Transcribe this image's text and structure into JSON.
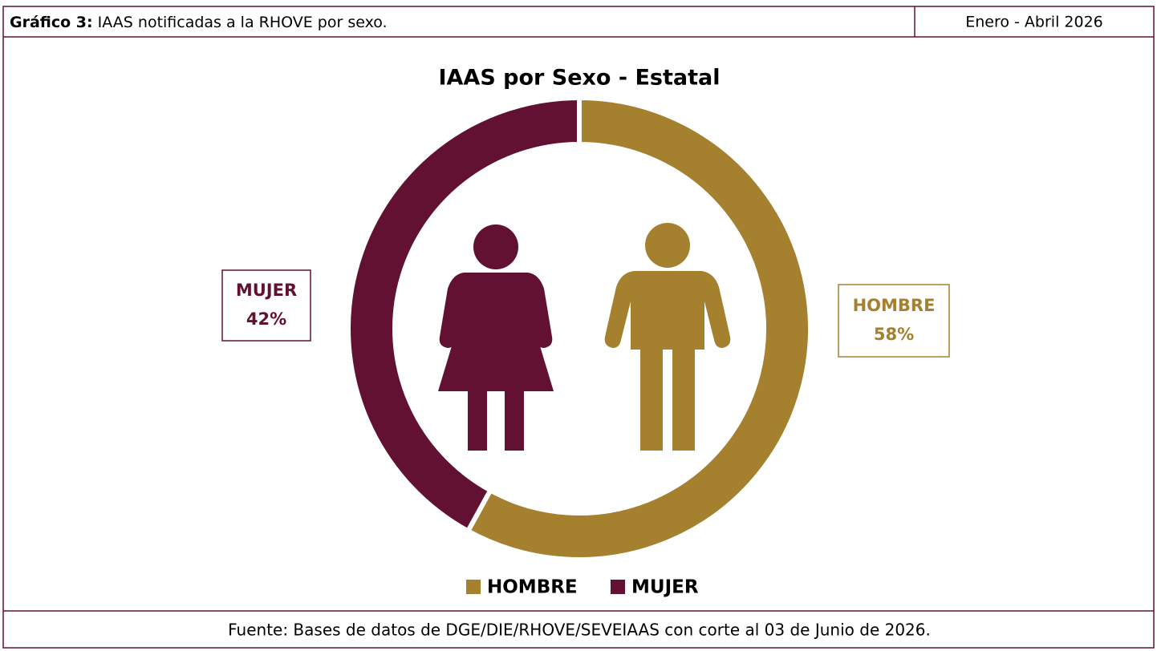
{
  "header": {
    "label": "Gráfico 3:",
    "title": "IAAS notificadas a la RHOVE por sexo.",
    "period": "Enero - Abril 2026"
  },
  "chart_data": {
    "type": "doughnut",
    "title": "IAAS por Sexo - Estatal",
    "categories": [
      "HOMBRE",
      "MUJER"
    ],
    "values": [
      58,
      42
    ],
    "value_labels": [
      "58%",
      "42%"
    ],
    "colors": [
      "#a5802f",
      "#621132"
    ],
    "legend": "bottom"
  },
  "footer": {
    "source": "Fuente: Bases de datos de DGE/DIE/RHOVE/SEVEIAAS con corte al 03 de Junio de 2026."
  }
}
